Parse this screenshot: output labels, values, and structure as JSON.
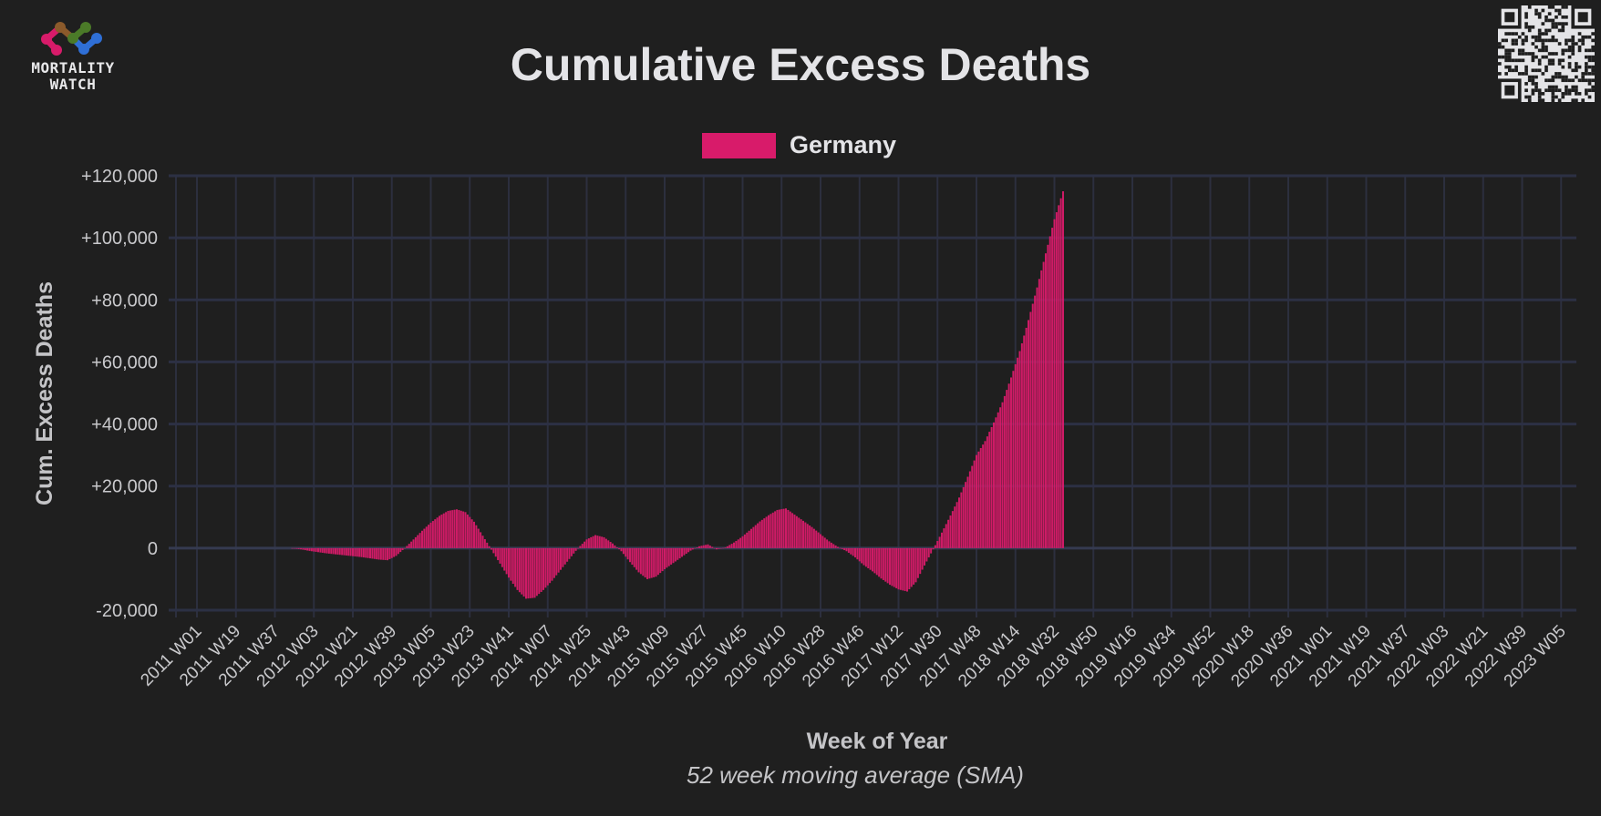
{
  "logo": {
    "text_line1": "MORTALITY",
    "text_line2": "WATCH"
  },
  "qr_code": {
    "icon": "qr-code-icon"
  },
  "chart_data": {
    "type": "bar",
    "title": "Cumulative Excess Deaths",
    "subtitle": "52 week moving average (SMA)",
    "xlabel": "Week of Year",
    "ylabel": "Cum. Excess Deaths",
    "ylim": [
      -20000,
      120000
    ],
    "yticks": [
      {
        "value": 120000,
        "label": "+120,000"
      },
      {
        "value": 100000,
        "label": "+100,000"
      },
      {
        "value": 80000,
        "label": "+80,000"
      },
      {
        "value": 60000,
        "label": "+60,000"
      },
      {
        "value": 40000,
        "label": "+40,000"
      },
      {
        "value": 20000,
        "label": "+20,000"
      },
      {
        "value": 0,
        "label": "0"
      },
      {
        "value": -20000,
        "label": "-20,000"
      }
    ],
    "xticks": [
      "2011 W01",
      "2011 W19",
      "2011 W37",
      "2012 W03",
      "2012 W21",
      "2012 W39",
      "2013 W05",
      "2013 W23",
      "2013 W41",
      "2014 W07",
      "2014 W25",
      "2014 W43",
      "2015 W09",
      "2015 W27",
      "2015 W45",
      "2016 W10",
      "2016 W28",
      "2016 W46",
      "2017 W12",
      "2017 W30",
      "2017 W48",
      "2018 W14",
      "2018 W32",
      "2018 W50",
      "2019 W16",
      "2019 W34",
      "2019 W52",
      "2020 W18",
      "2020 W36",
      "2021 W01",
      "2021 W19",
      "2021 W37",
      "2022 W03",
      "2022 W21",
      "2022 W39",
      "2023 W05"
    ],
    "xtick_step_weeks": 18,
    "x_start_label": "2011 W01",
    "grid": true,
    "legend": {
      "position": "top-center",
      "entries": [
        {
          "name": "Germany",
          "color": "#d81b6a"
        }
      ]
    },
    "series": [
      {
        "name": "Germany",
        "color": "#d81b6a",
        "start_week_index": 44,
        "step_weeks": 4,
        "values": [
          0,
          -400,
          -900,
          -1300,
          -1700,
          -2000,
          -2300,
          -2600,
          -2900,
          -3300,
          -3700,
          -3900,
          -2500,
          0,
          2800,
          5600,
          8200,
          10400,
          12000,
          12500,
          11600,
          8500,
          4000,
          -500,
          -5000,
          -9500,
          -13500,
          -16300,
          -16000,
          -13500,
          -10500,
          -7000,
          -3500,
          0,
          2800,
          4200,
          3500,
          1500,
          -1000,
          -4500,
          -7800,
          -10000,
          -9200,
          -6800,
          -4800,
          -2800,
          -800,
          600,
          1200,
          -400,
          200,
          1800,
          3800,
          6200,
          8600,
          10600,
          12300,
          12800,
          10800,
          8800,
          6800,
          4500,
          2200,
          400,
          -1000,
          -3000,
          -5500,
          -7500,
          -9800,
          -11800,
          -13300,
          -14000,
          -11000,
          -5600,
          -400,
          5000,
          10500,
          16300,
          23000,
          30000,
          34500,
          40500,
          47000,
          55000,
          63500,
          73500,
          84000,
          95000,
          106000,
          115000
        ]
      }
    ]
  }
}
